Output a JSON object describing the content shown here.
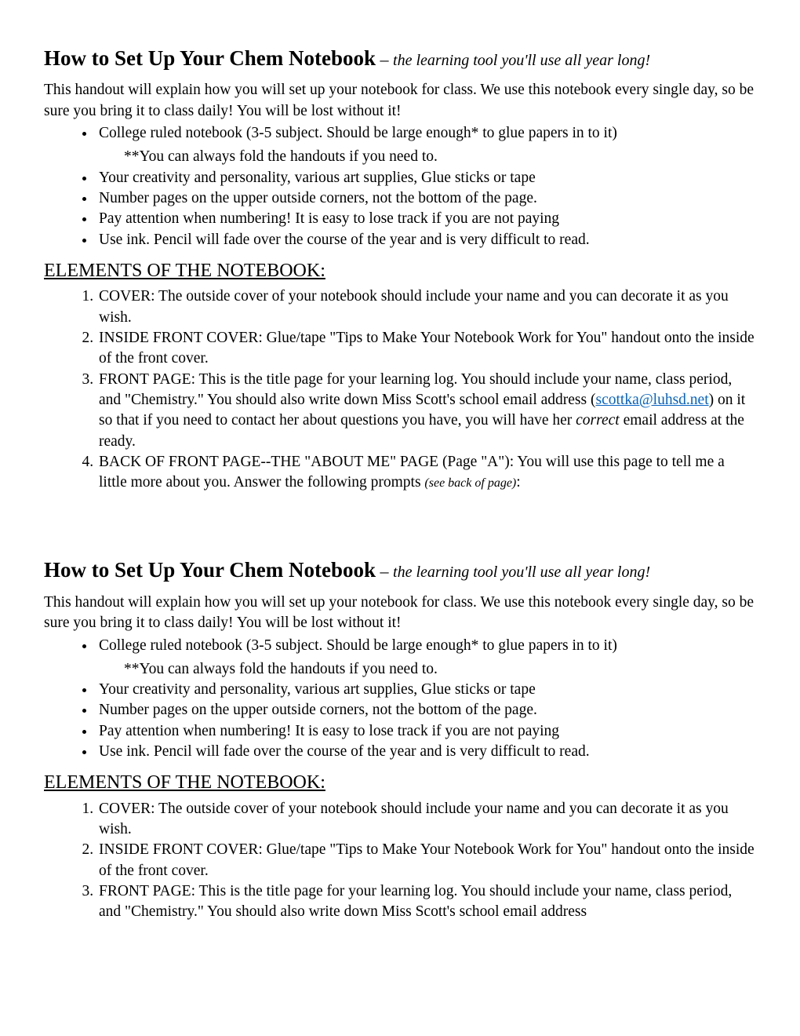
{
  "title": {
    "bold": "How to Set Up Your Chem Notebook",
    "sep": " – ",
    "italic": "the learning tool you'll use all year long!"
  },
  "intro": "This handout will explain how you will set up your notebook for class. We use this notebook every single day, so be sure you bring it to class daily! You will be lost without it!",
  "bullets": {
    "b1": "College ruled notebook (3-5 subject. Should be large enough* to glue papers in to it)",
    "b1_sub": "**You can always fold the handouts if you need to.",
    "b2": "Your creativity and personality, various art supplies, Glue sticks or tape",
    "b3": "Number pages on the upper outside corners, not the bottom of the page.",
    "b4": "Pay attention when numbering! It is easy to lose track if you are not paying",
    "b5": "Use ink. Pencil will fade over the course of the year and is very difficult to read."
  },
  "section_heading": "ELEMENTS OF THE NOTEBOOK:",
  "numbered": {
    "n1": "COVER: The outside cover of your notebook should include your name and you can decorate it as you wish.",
    "n2": "INSIDE FRONT COVER: Glue/tape \"Tips to Make Your Notebook Work for You\" handout onto the inside of the front cover.",
    "n3_pre": "FRONT PAGE: This is the title page for your learning log. You should include your name, class period, and \"Chemistry.\"  You should also write down Miss Scott's school email address (",
    "n3_email": "scottka@luhsd.net",
    "n3_mid": ") on it so that if you need to contact her about questions you have, you will have her ",
    "n3_correct": "correct",
    "n3_post": " email address at the ready.",
    "n4_pre": "BACK OF FRONT PAGE--THE \"ABOUT ME\" PAGE (Page \"A\"): You will use this page to tell me a little more about you. Answer the following prompts ",
    "n4_seeback": "(see back of page)",
    "n4_post": ":"
  },
  "colors": {
    "link": "#0563c1",
    "text": "#000000",
    "bg": "#ffffff"
  }
}
